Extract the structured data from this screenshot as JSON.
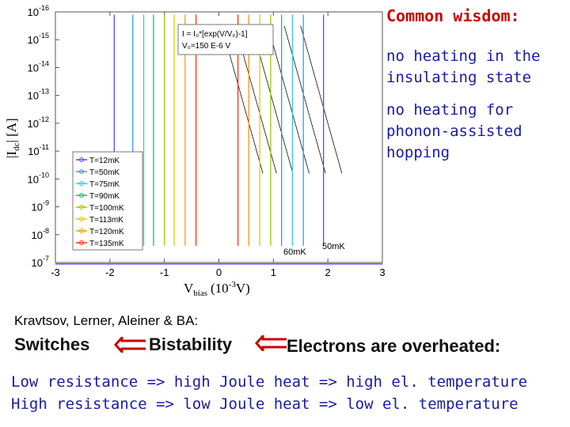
{
  "slide": {
    "title": "Common wisdom:",
    "wisdom": [
      "no heating in the\ninsulating state",
      "no heating for\nphonon-assisted\nhopping"
    ],
    "authors": "Kravtsov, Lerner, Aleiner & BA:",
    "chain": [
      "Switches",
      "Bistability",
      "Electrons are overheated:"
    ],
    "lines": [
      "Low resistance => high Joule heat => high el. temperature",
      "High resistance => low Joule heat =>  low el. temperature"
    ]
  },
  "chart_data": {
    "type": "line",
    "xlabel": "V",
    "xlabel_sub": "bias",
    "xlabel_unit": "(10",
    "xlabel_exp": "-3",
    "xlabel_tail": "V)",
    "ylabel": "|I",
    "ylabel_sub": "dc",
    "ylabel_tail": "| [A]",
    "xlim": [
      -3,
      3
    ],
    "ylim_exp": [
      -16,
      -7
    ],
    "xticks": [
      -3,
      -2,
      -1,
      0,
      1,
      2,
      3
    ],
    "yticks": [
      -7,
      -8,
      -9,
      -10,
      -11,
      -12,
      -13,
      -14,
      -15,
      -16
    ],
    "tick_base": "10",
    "y_scale": "log",
    "equation": [
      "I = I₀*[exp(V/V₀)-1]",
      "V₀=150 E-6 V"
    ],
    "labels_on_plot": [
      "60mK",
      "50mK"
    ],
    "legend_position": "lower-left",
    "series": [
      {
        "name": "T=12mK",
        "color": "#5050ff",
        "sw_pos": 1.92,
        "sw_neg": -1.92,
        "slope": 1.3
      },
      {
        "name": "T=50mK",
        "color": "#3399ff",
        "sw_pos": 1.55,
        "sw_neg": -1.58,
        "slope": 1.5
      },
      {
        "name": "T=75mK",
        "color": "#33cccc",
        "sw_pos": 1.35,
        "sw_neg": -1.38,
        "slope": 1.7
      },
      {
        "name": "T=90mK",
        "color": "#00cc66",
        "sw_pos": 1.15,
        "sw_neg": -1.2,
        "slope": 1.9
      },
      {
        "name": "T=100mK",
        "color": "#99cc00",
        "sw_pos": 0.95,
        "sw_neg": -1.0,
        "slope": 2.1
      },
      {
        "name": "T=113mK",
        "color": "#ddcc00",
        "sw_pos": 0.75,
        "sw_neg": -0.82,
        "slope": 2.4
      },
      {
        "name": "T=120mK",
        "color": "#ff9900",
        "sw_pos": 0.55,
        "sw_neg": -0.62,
        "slope": 2.7
      },
      {
        "name": "T=135mK",
        "color": "#ff3300",
        "sw_pos": 0.35,
        "sw_neg": -0.42,
        "slope": 3.2
      }
    ],
    "fits": [
      {
        "center": 0.05,
        "slope": 7.0
      },
      {
        "center": 0.3,
        "slope": 7.0
      },
      {
        "center": 0.6,
        "slope": 7.0
      },
      {
        "center": 0.9,
        "slope": 7.0
      },
      {
        "center": 1.2,
        "slope": 7.0
      },
      {
        "center": 1.5,
        "slope": 7.0
      }
    ],
    "noise_floor_exp": -15.3
  }
}
